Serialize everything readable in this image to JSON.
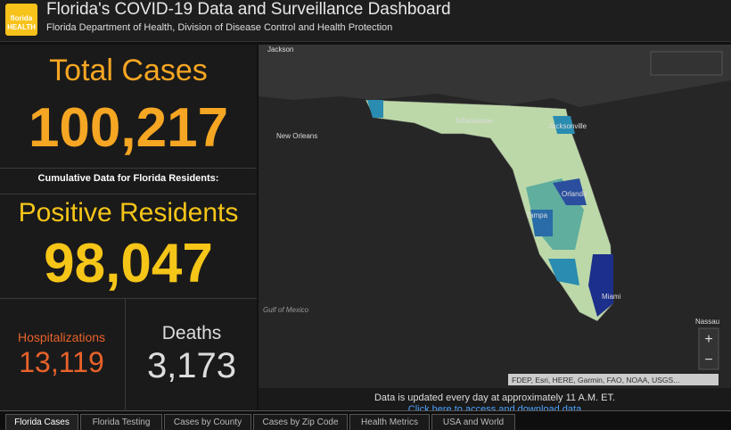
{
  "header": {
    "logo": "florida HEALTH",
    "title": "Florida's COVID-19 Data and Surveillance Dashboard",
    "subtitle": "Florida Department of Health, Division of Disease Control and Health Protection"
  },
  "stats": {
    "total_cases": {
      "label": "Total Cases",
      "value": "100,217"
    },
    "cumulative_note": "Cumulative Data for Florida Residents:",
    "positive_residents": {
      "label": "Positive Residents",
      "value": "98,047"
    },
    "hospitalizations": {
      "label": "Hospitalizations",
      "value": "13,119"
    },
    "deaths": {
      "label": "Deaths",
      "value": "3,173"
    }
  },
  "map": {
    "labels": [
      "Jackson",
      "New Orleans",
      "Tallahassee",
      "Jacksonville",
      "Orlando",
      "Tampa",
      "Miami",
      "Gulf of Mexico",
      "Nassau"
    ],
    "attribution": "FDEP, Esri, HERE, Garmin, FAO, NOAA, USGS..."
  },
  "note": {
    "text": "Data is updated every day at approximately 11 A.M. ET.",
    "link": "Click here to access and download data"
  },
  "tabs": [
    "Florida Cases",
    "Florida Testing",
    "Cases by County",
    "Cases by Zip Code",
    "Health Metrics",
    "USA and World"
  ]
}
